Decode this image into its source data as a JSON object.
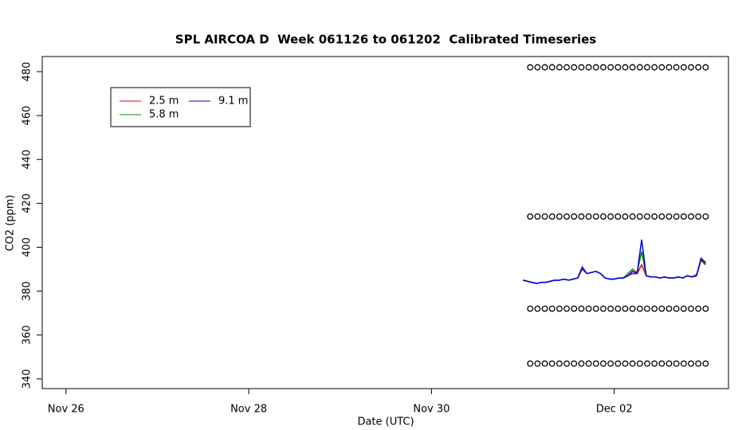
{
  "chart_data": {
    "type": "line",
    "title": "SPL AIRCOA D  Week 061126 to 061202  Calibrated Timeseries",
    "xlabel": "Date (UTC)",
    "ylabel": "CO2 (ppm)",
    "xlim": [
      25.74,
      33.25
    ],
    "xticks": [
      {
        "value": 26,
        "label": "Nov 26"
      },
      {
        "value": 28,
        "label": "Nov 28"
      },
      {
        "value": 30,
        "label": "Nov 30"
      },
      {
        "value": 32,
        "label": "Dec 02"
      }
    ],
    "ylim": [
      335.6,
      486.9
    ],
    "yticks": [
      340,
      360,
      380,
      400,
      420,
      440,
      460,
      480
    ],
    "legend": "topleft",
    "x": [
      31.0,
      31.05,
      31.1,
      31.15,
      31.2,
      31.25,
      31.3,
      31.35,
      31.4,
      31.45,
      31.5,
      31.55,
      31.6,
      31.65,
      31.7,
      31.75,
      31.8,
      31.85,
      31.9,
      31.95,
      32.0,
      32.05,
      32.1,
      32.15,
      32.2,
      32.25,
      32.3,
      32.35,
      32.4,
      32.45,
      32.5,
      32.55,
      32.6,
      32.65,
      32.7,
      32.75,
      32.8,
      32.85,
      32.9,
      32.95,
      33.0
    ],
    "series": [
      {
        "name": "2.5 m",
        "color": "#dd0000",
        "values": [
          385,
          384.5,
          384,
          383.5,
          384,
          384,
          384.5,
          385,
          385,
          385.5,
          385,
          385.5,
          386,
          390,
          388,
          388.5,
          389,
          388,
          386,
          385.5,
          385.5,
          386,
          386,
          387,
          388,
          388,
          392,
          387,
          386.5,
          386.5,
          386,
          386.5,
          386,
          386,
          386.5,
          386,
          387,
          386.5,
          387.5,
          394,
          392
        ]
      },
      {
        "name": "5.8 m",
        "color": "#008800",
        "values": [
          385,
          384.5,
          384,
          383.5,
          384,
          384,
          384.5,
          385,
          385,
          385.5,
          385,
          385.5,
          386,
          390.5,
          388,
          388.5,
          389,
          388,
          386,
          385.5,
          385.5,
          386,
          386,
          388,
          390,
          388.5,
          398,
          387,
          386.5,
          386.5,
          386,
          386.5,
          386,
          386,
          386.5,
          386,
          387,
          386.5,
          387,
          394.5,
          392.5
        ]
      },
      {
        "name": "9.1 m",
        "color": "#0000ee",
        "values": [
          385,
          384.5,
          384,
          383.5,
          384,
          384,
          384.5,
          385,
          385,
          385.5,
          385,
          385.5,
          386,
          391,
          388,
          388.5,
          389,
          388,
          386,
          385.5,
          385.5,
          386,
          386,
          387,
          389,
          388,
          403.5,
          387,
          386.5,
          386.5,
          386,
          386.5,
          386,
          386,
          386.5,
          386,
          387,
          386.5,
          387,
          395,
          393
        ]
      }
    ],
    "points": {
      "levels": [
        482,
        414,
        372,
        347
      ],
      "x": [
        31.08,
        31.16,
        31.24,
        31.32,
        31.4,
        31.48,
        31.56,
        31.64,
        31.72,
        31.8,
        31.88,
        31.96,
        32.04,
        32.12,
        32.2,
        32.28,
        32.36,
        32.44,
        32.52,
        32.6,
        32.68,
        32.76,
        32.84,
        32.92,
        33.0
      ]
    }
  }
}
